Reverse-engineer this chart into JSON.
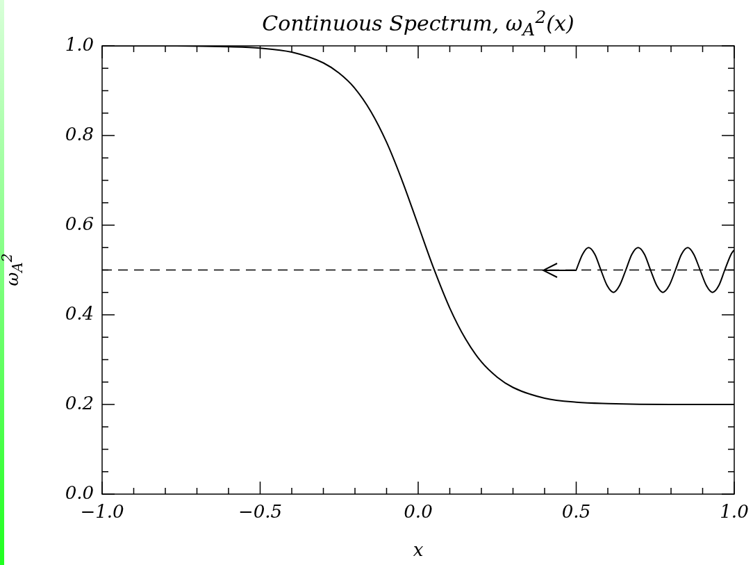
{
  "chart_data": {
    "type": "line",
    "title": "Continuous Spectrum, ω$_{A}$$^{2}$(x)",
    "xlabel": "x",
    "ylabel": "ω$_{A}$$^{2}$",
    "x": [
      -1,
      -0.8,
      -0.6,
      -0.5,
      -0.4,
      -0.3,
      -0.25,
      -0.2,
      -0.15,
      -0.1,
      -0.05,
      0,
      0.05,
      0.1,
      0.15,
      0.2,
      0.25,
      0.3,
      0.4,
      0.5,
      0.6,
      0.8,
      1
    ],
    "series": [
      {
        "color": "#000000",
        "values": [
          1.0,
          1.0,
          0.998,
          0.995,
          0.986,
          0.962,
          0.939,
          0.905,
          0.854,
          0.785,
          0.698,
          0.6,
          0.502,
          0.415,
          0.346,
          0.295,
          0.261,
          0.238,
          0.214,
          0.205,
          0.202,
          0.2,
          0.2
        ]
      },
      {
        "color": "#000000",
        "x": [
          0.5,
          0.52,
          0.539,
          0.559,
          0.578,
          0.598,
          0.618,
          0.637,
          0.657,
          0.676,
          0.696,
          0.716,
          0.735,
          0.755,
          0.774,
          0.794,
          0.814,
          0.833,
          0.853,
          0.872,
          0.892,
          0.912,
          0.931,
          0.951,
          0.97,
          0.99,
          1.0
        ],
        "values": [
          0.5,
          0.535,
          0.55,
          0.535,
          0.5,
          0.465,
          0.45,
          0.465,
          0.5,
          0.535,
          0.55,
          0.535,
          0.5,
          0.465,
          0.45,
          0.465,
          0.5,
          0.535,
          0.55,
          0.535,
          0.5,
          0.465,
          0.45,
          0.465,
          0.5,
          0.535,
          0.545
        ]
      }
    ],
    "xlim": [
      -1,
      1
    ],
    "ylim": [
      0,
      1
    ],
    "xticks": [
      {
        "value": -1,
        "label": "−1.0"
      },
      {
        "value": -0.9,
        "label": null
      },
      {
        "value": -0.8,
        "label": null
      },
      {
        "value": -0.7,
        "label": null
      },
      {
        "value": -0.6,
        "label": null
      },
      {
        "value": -0.5,
        "label": "−0.5"
      },
      {
        "value": -0.4,
        "label": null
      },
      {
        "value": -0.3,
        "label": null
      },
      {
        "value": -0.2,
        "label": null
      },
      {
        "value": -0.1,
        "label": null
      },
      {
        "value": 0,
        "label": "0.0"
      },
      {
        "value": 0.1,
        "label": null
      },
      {
        "value": 0.2,
        "label": null
      },
      {
        "value": 0.3,
        "label": null
      },
      {
        "value": 0.4,
        "label": null
      },
      {
        "value": 0.5,
        "label": "0.5"
      },
      {
        "value": 0.6,
        "label": null
      },
      {
        "value": 0.7,
        "label": null
      },
      {
        "value": 0.8,
        "label": null
      },
      {
        "value": 0.9,
        "label": null
      },
      {
        "value": 1,
        "label": "1.0"
      }
    ],
    "yticks": [
      {
        "value": 0,
        "label": "0.0"
      },
      {
        "value": 0.05,
        "label": null
      },
      {
        "value": 0.1,
        "label": null
      },
      {
        "value": 0.15,
        "label": null
      },
      {
        "value": 0.2,
        "label": "0.2"
      },
      {
        "value": 0.25,
        "label": null
      },
      {
        "value": 0.3,
        "label": null
      },
      {
        "value": 0.35,
        "label": null
      },
      {
        "value": 0.4,
        "label": "0.4"
      },
      {
        "value": 0.45,
        "label": null
      },
      {
        "value": 0.5,
        "label": null
      },
      {
        "value": 0.55,
        "label": null
      },
      {
        "value": 0.6,
        "label": "0.6"
      },
      {
        "value": 0.65,
        "label": null
      },
      {
        "value": 0.7,
        "label": null
      },
      {
        "value": 0.75,
        "label": null
      },
      {
        "value": 0.8,
        "label": "0.8"
      },
      {
        "value": 0.85,
        "label": null
      },
      {
        "value": 0.9,
        "label": null
      },
      {
        "value": 0.95,
        "label": null
      },
      {
        "value": 1,
        "label": "1.0"
      }
    ],
    "ref_lines": [
      {
        "axis": "y",
        "value": 0.5,
        "color": "#000000",
        "line_style": "dashed"
      }
    ],
    "grid": false,
    "legend": false,
    "marker": "none",
    "line_style": "solid"
  }
}
